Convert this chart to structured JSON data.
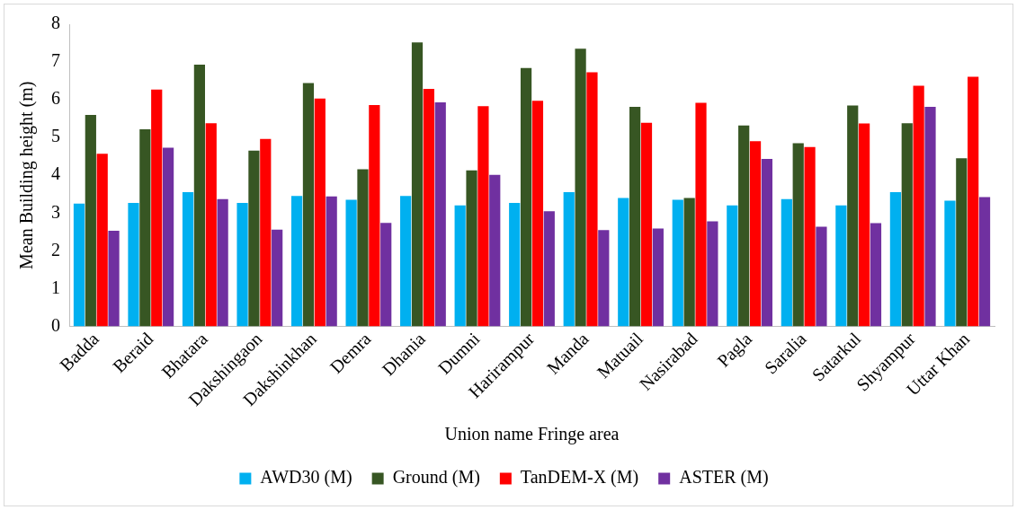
{
  "chart_data": {
    "type": "bar",
    "xlabel": "Union name Fringe area",
    "ylabel": "Mean Building height (m)",
    "categories": [
      "Badda",
      "Beraid",
      "Bhatara",
      "Dakshingaon",
      "Dakshinkhan",
      "Demra",
      "Dhania",
      "Dumni",
      "Harirampur",
      "Manda",
      "Matuail",
      "Nasirabad",
      "Pagla",
      "Saralia",
      "Satarkul",
      "Shyampur",
      "Uttar Khan"
    ],
    "series": [
      {
        "name": "AWD30 (M)",
        "color": "#00b0f0",
        "values": [
          3.25,
          3.27,
          3.55,
          3.27,
          3.45,
          3.35,
          3.45,
          3.2,
          3.27,
          3.55,
          3.4,
          3.35,
          3.2,
          3.37,
          3.2,
          3.55,
          3.33
        ]
      },
      {
        "name": "Ground (M)",
        "color": "#375623",
        "values": [
          5.6,
          5.22,
          6.93,
          4.65,
          6.44,
          4.16,
          7.52,
          4.13,
          6.84,
          7.35,
          5.81,
          3.4,
          5.32,
          4.85,
          5.85,
          5.38,
          4.45
        ]
      },
      {
        "name": "TanDEM-X (M)",
        "color": "#ff0000",
        "values": [
          4.57,
          6.27,
          5.38,
          4.96,
          6.03,
          5.86,
          6.29,
          5.83,
          5.97,
          6.73,
          5.39,
          5.92,
          4.9,
          4.75,
          5.37,
          6.37,
          6.61
        ]
      },
      {
        "name": "ASTER (M)",
        "color": "#7030a0",
        "values": [
          2.53,
          4.73,
          3.37,
          2.56,
          3.44,
          2.74,
          5.93,
          4.01,
          3.05,
          2.55,
          2.59,
          2.78,
          4.43,
          2.64,
          2.73,
          5.81,
          3.42
        ]
      }
    ],
    "ylim": [
      0,
      8
    ],
    "yticks": [
      0,
      1,
      2,
      3,
      4,
      5,
      6,
      7,
      8
    ],
    "grid": false,
    "legend": "bottom"
  }
}
